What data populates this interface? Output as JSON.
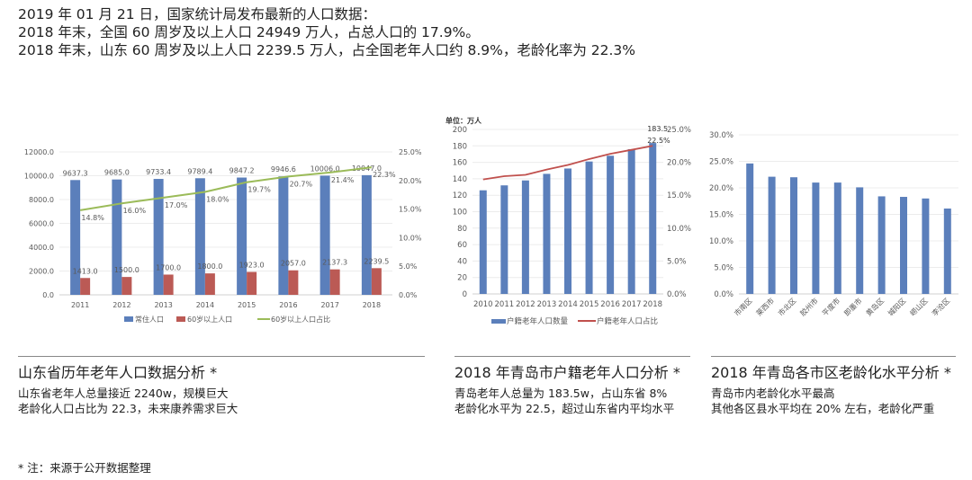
{
  "intro": {
    "lines": [
      "2019 年 01 月 21 日，国家统计局发布最新的人口数据：",
      "2018 年末，全国 60 周岁及以上人口 24949 万人，占总人口的 17.9%。",
      "2018 年末，山东 60 周岁及以上人口 2239.5 万人，占全国老年人口约 8.9%，老龄化率为 22.3%"
    ]
  },
  "sections": [
    {
      "title": "山东省历年老年人口数据分析 *",
      "captions": [
        "山东省老年人总量接近 2240w，规模巨大",
        "老龄化人口占比为 22.3，未来康养需求巨大"
      ]
    },
    {
      "title": "2018 年青岛市户籍老年人口分析 *",
      "captions": [
        "青岛老年人总量为 183.5w，占山东省 8%",
        "老龄化水平为 22.5，超过山东省内平均水平"
      ]
    },
    {
      "title": "2018 年青岛各市区老龄化水平分析 *",
      "captions": [
        "青岛市内老龄化水平最高",
        "其他各区县水平均在 20% 左右，老龄化严重"
      ]
    }
  ],
  "note": "* 注：来源于公开数据整理",
  "chart_data": [
    {
      "type": "bar+line",
      "categories": [
        "2011",
        "2012",
        "2013",
        "2014",
        "2015",
        "2016",
        "2017",
        "2018"
      ],
      "series": [
        {
          "name": "常住人口",
          "type": "bar",
          "axis": "left",
          "color": "#5b7fbb",
          "values": [
            9637.3,
            9685.0,
            9733.4,
            9789.4,
            9847.2,
            9946.6,
            10006.0,
            10047.0
          ],
          "labels": [
            "9637.3",
            "9685.0",
            "9733.4",
            "9789.4",
            "9847.2",
            "9946.6",
            "10006.0",
            "10047.0"
          ]
        },
        {
          "name": "60岁以上人口",
          "type": "bar",
          "axis": "left",
          "color": "#bb5a55",
          "values": [
            1413.0,
            1500.0,
            1700.0,
            1800.0,
            1923.0,
            2057.0,
            2137.3,
            2239.5
          ],
          "labels": [
            "1413.0",
            "1500.0",
            "1700.0",
            "1800.0",
            "1923.0",
            "2057.0",
            "2137.3",
            "2239.5"
          ]
        },
        {
          "name": "60岁以上人口占比",
          "type": "line",
          "axis": "right",
          "color": "#9bbb59",
          "values": [
            14.8,
            16.0,
            17.0,
            18.0,
            19.7,
            20.7,
            21.4,
            22.3
          ],
          "labels": [
            "14.8%",
            "16.0%",
            "17.0%",
            "18.0%",
            "19.7%",
            "20.7%",
            "21.4%",
            "22.3%"
          ]
        }
      ],
      "yleft": {
        "lim": [
          0,
          12000
        ],
        "ticks": [
          "0.0",
          "2000.0",
          "4000.0",
          "6000.0",
          "8000.0",
          "10000.0",
          "12000.0"
        ]
      },
      "yright": {
        "lim": [
          0,
          25
        ],
        "ticks": [
          "0.0%",
          "5.0%",
          "10.0%",
          "15.0%",
          "20.0%",
          "25.0%"
        ]
      },
      "grid": true,
      "legend": "bottom"
    },
    {
      "type": "bar+line",
      "unit_label": "单位：万人",
      "categories": [
        "2010",
        "2011",
        "2012",
        "2013",
        "2014",
        "2015",
        "2016",
        "2017",
        "2018"
      ],
      "series": [
        {
          "name": "户籍老年人口数量",
          "type": "bar",
          "axis": "left",
          "color": "#5b7fbb",
          "values": [
            126,
            132,
            138,
            146,
            152.5,
            161,
            168,
            176,
            183.5
          ]
        },
        {
          "name": "户籍老年人口占比",
          "type": "line",
          "axis": "right",
          "color": "#c0504d",
          "values": [
            17.4,
            17.9,
            18.1,
            18.9,
            19.6,
            20.5,
            21.3,
            21.9,
            22.5
          ]
        }
      ],
      "annotations": [
        "183.5",
        "22.5%"
      ],
      "yleft": {
        "lim": [
          0,
          200
        ],
        "ticks": [
          "0",
          "20",
          "40",
          "60",
          "80",
          "100",
          "120",
          "140",
          "160",
          "180",
          "200"
        ]
      },
      "yright": {
        "lim": [
          0,
          25
        ],
        "ticks": [
          "0.0%",
          "5.0%",
          "10.0%",
          "15.0%",
          "20.0%",
          "25.0%"
        ]
      },
      "grid": true,
      "legend": "bottom"
    },
    {
      "type": "bar",
      "categories": [
        "市南区",
        "莱西市",
        "市北区",
        "胶州市",
        "平度市",
        "即墨市",
        "黄岛区",
        "城阳区",
        "崂山区",
        "李沧区"
      ],
      "values": [
        24.6,
        22.1,
        22.0,
        21.0,
        21.0,
        20.1,
        18.4,
        18.3,
        18.0,
        16.1
      ],
      "color": "#5b7fbb",
      "yleft": {
        "lim": [
          0,
          30
        ],
        "ticks": [
          "0.0%",
          "5.0%",
          "10.0%",
          "15.0%",
          "20.0%",
          "25.0%",
          "30.0%"
        ]
      },
      "grid": true,
      "legend": "none"
    }
  ]
}
